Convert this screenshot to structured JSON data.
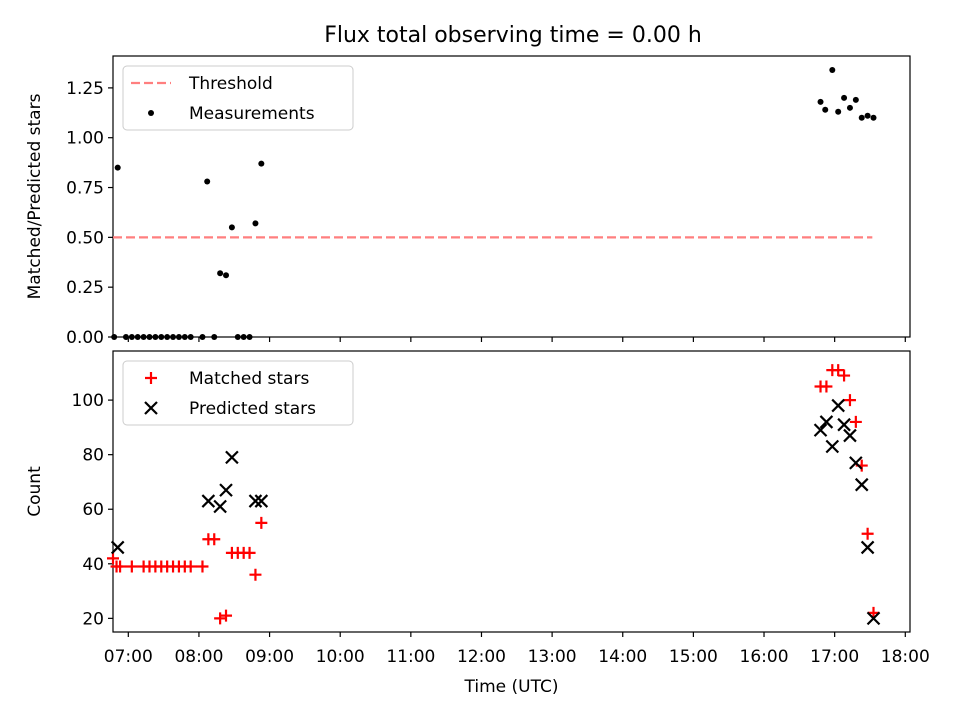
{
  "figure": {
    "title": "Flux total observing time = 0.00 h"
  },
  "chart_data": [
    {
      "type": "scatter",
      "ylabel": "Matched/Predicted stars",
      "ylim": [
        0,
        1.41
      ],
      "yticks": [
        0,
        0.25,
        0.5,
        0.75,
        1.0,
        1.25
      ],
      "ytick_labels": [
        "0.00",
        "0.25",
        "0.50",
        "0.75",
        "1.00",
        "1.25"
      ],
      "xlim": [
        "06:47",
        "18:04"
      ],
      "xtick_labels": [
        "07:00",
        "08:00",
        "09:00",
        "10:00",
        "11:00",
        "12:00",
        "13:00",
        "14:00",
        "15:00",
        "16:00",
        "17:00",
        "18:00"
      ],
      "grid": false,
      "legend_position": "top-left",
      "legend": [
        {
          "label": "Threshold",
          "marker": "dashed-line",
          "color": "#ff7f7f"
        },
        {
          "label": "Measurements",
          "marker": "dot",
          "color": "#000000"
        }
      ],
      "series": [
        {
          "name": "Threshold",
          "style": "dashed-line",
          "color": "#ff7f7f",
          "x": [
            "06:47",
            "17:32"
          ],
          "y": [
            0.5,
            0.5
          ]
        },
        {
          "name": "Measurements",
          "style": "dot",
          "color": "#000000",
          "x": [
            "06:48",
            "06:51",
            "06:58",
            "07:03",
            "07:08",
            "07:13",
            "07:18",
            "07:23",
            "07:28",
            "07:33",
            "07:38",
            "07:43",
            "07:48",
            "07:53",
            "08:03",
            "08:07",
            "08:13",
            "08:18",
            "08:23",
            "08:28",
            "08:33",
            "08:38",
            "08:43",
            "08:48",
            "08:53",
            "16:48",
            "16:52",
            "16:58",
            "17:03",
            "17:08",
            "17:13",
            "17:18",
            "17:23",
            "17:28",
            "17:33"
          ],
          "y": [
            0.0,
            0.85,
            0.0,
            0.0,
            0.0,
            0.0,
            0.0,
            0.0,
            0.0,
            0.0,
            0.0,
            0.0,
            0.0,
            0.0,
            0.0,
            0.78,
            0.0,
            0.32,
            0.31,
            0.55,
            0.0,
            0.0,
            0.0,
            0.57,
            0.87,
            1.18,
            1.14,
            1.34,
            1.13,
            1.2,
            1.15,
            1.19,
            1.1,
            1.11,
            1.1
          ]
        }
      ]
    },
    {
      "type": "scatter",
      "xlabel": "Time (UTC)",
      "ylabel": "Count",
      "ylim": [
        15,
        118
      ],
      "yticks": [
        20,
        40,
        60,
        80,
        100
      ],
      "ytick_labels": [
        "20",
        "40",
        "60",
        "80",
        "100"
      ],
      "xlim": [
        "06:47",
        "18:04"
      ],
      "xtick_labels": [
        "07:00",
        "08:00",
        "09:00",
        "10:00",
        "11:00",
        "12:00",
        "13:00",
        "14:00",
        "15:00",
        "16:00",
        "17:00",
        "18:00"
      ],
      "grid": false,
      "legend_position": "top-left",
      "legend": [
        {
          "label": "Matched stars",
          "marker": "plus",
          "color": "#ff0000"
        },
        {
          "label": "Predicted stars",
          "marker": "x",
          "color": "#000000"
        }
      ],
      "series": [
        {
          "name": "Matched stars",
          "style": "plus",
          "color": "#ff0000",
          "x": [
            "06:47",
            "06:50",
            "06:53",
            "07:03",
            "07:13",
            "07:18",
            "07:23",
            "07:28",
            "07:33",
            "07:38",
            "07:43",
            "07:48",
            "07:53",
            "08:03",
            "08:08",
            "08:13",
            "08:18",
            "08:23",
            "08:28",
            "08:33",
            "08:38",
            "08:43",
            "08:48",
            "08:53",
            "16:48",
            "16:53",
            "16:58",
            "17:03",
            "17:08",
            "17:13",
            "17:18",
            "17:23",
            "17:28",
            "17:33"
          ],
          "y": [
            42,
            39,
            39,
            39,
            39,
            39,
            39,
            39,
            39,
            39,
            39,
            39,
            39,
            39,
            49,
            49,
            20,
            21,
            44,
            44,
            44,
            44,
            36,
            55,
            105,
            105,
            111,
            111,
            109,
            100,
            92,
            76,
            51,
            22
          ]
        },
        {
          "name": "Predicted stars",
          "style": "x",
          "color": "#000000",
          "x": [
            "06:51",
            "08:08",
            "08:18",
            "08:23",
            "08:28",
            "08:48",
            "08:53",
            "16:48",
            "16:53",
            "16:58",
            "17:03",
            "17:08",
            "17:13",
            "17:18",
            "17:23",
            "17:28",
            "17:33"
          ],
          "y": [
            46,
            63,
            61,
            67,
            79,
            63,
            63,
            89,
            92,
            83,
            98,
            91,
            87,
            77,
            69,
            46,
            20
          ]
        }
      ]
    }
  ]
}
